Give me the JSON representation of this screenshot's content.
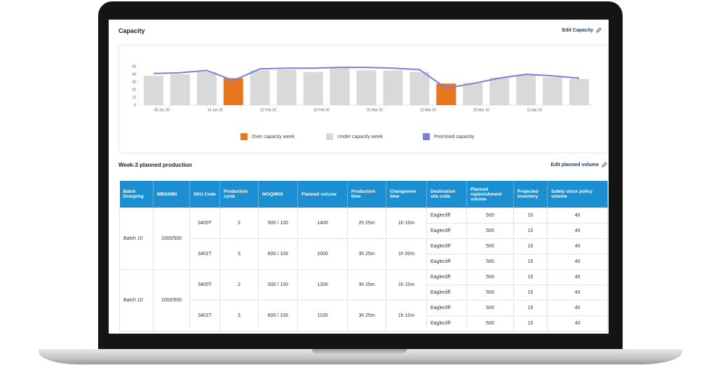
{
  "header": {
    "title": "Capacity",
    "edit": "Edit Capacity"
  },
  "chart_data": {
    "type": "bar",
    "categories": [
      "05 Jan 20",
      null,
      "19 Jan 20",
      null,
      "02 Feb 20",
      null,
      "16 Feb 20",
      null,
      "01 Mar 20",
      null,
      "15 Mar 20",
      null,
      "29 Mar 20",
      null,
      "12 Apr 20",
      null,
      null
    ],
    "series": [
      {
        "name": "Over capacity week",
        "color": "#e8761e",
        "values": [
          null,
          null,
          null,
          35,
          null,
          null,
          null,
          null,
          null,
          null,
          null,
          28,
          null,
          null,
          null,
          null,
          null
        ]
      },
      {
        "name": "Under capacity week",
        "color": "#d9d9d9",
        "values": [
          38,
          40,
          43,
          null,
          45,
          46,
          43,
          48,
          45,
          45,
          43,
          null,
          29,
          36,
          39,
          36,
          34
        ]
      },
      {
        "name": "Promised capacity",
        "type": "line",
        "color": "#7b7fdc",
        "values": [
          41,
          42,
          45,
          32,
          47,
          48,
          48,
          49,
          49,
          48,
          46,
          22,
          28,
          35,
          40,
          38,
          35
        ]
      }
    ],
    "ylim": [
      0,
      50
    ],
    "yticks": [
      0,
      10,
      20,
      30,
      40,
      50
    ],
    "grid": false
  },
  "production": {
    "title": "Week-3 planned production",
    "edit": "Edit planned volume"
  },
  "table": {
    "headers": [
      "Batch Grouping",
      "MBS/MBI",
      "SKU Code",
      "Production cycle",
      "MOQ/MOI",
      "Planned volume",
      "Production time",
      "Changeover time",
      "Destination site code",
      "Planned replenishment volume",
      "Projected inventory",
      "Safety stock policy volume"
    ],
    "groups": [
      {
        "batch": "Batch 10",
        "mbs": "1000/500",
        "skus": [
          {
            "sku": "3400T",
            "cycle": "2",
            "moq": "500 / 100",
            "planned": "1400",
            "time": "2h 25m",
            "changeover": "1h 10m",
            "destinations": [
              {
                "site": "Eaglecliff",
                "volume": "500",
                "inventory": "10",
                "safety": "40"
              },
              {
                "site": "Eaglecliff",
                "volume": "500",
                "inventory": "10",
                "safety": "40"
              }
            ]
          },
          {
            "sku": "3401T",
            "cycle": "3",
            "moq": "600 / 100",
            "planned": "1000",
            "time": "3h 25m",
            "changeover": "1h 00m",
            "destinations": [
              {
                "site": "Eaglecliff",
                "volume": "500",
                "inventory": "10",
                "safety": "40"
              },
              {
                "site": "Eaglecliff",
                "volume": "500",
                "inventory": "10",
                "safety": "40"
              }
            ]
          }
        ]
      },
      {
        "batch": "Batch 10",
        "mbs": "1000/500",
        "skus": [
          {
            "sku": "3400T",
            "cycle": "2",
            "moq": "500 / 100",
            "planned": "1200",
            "time": "3h 25m",
            "changeover": "1h 10m",
            "destinations": [
              {
                "site": "Eaglecliff",
                "volume": "500",
                "inventory": "10",
                "safety": "40"
              },
              {
                "site": "Eaglecliff",
                "volume": "500",
                "inventory": "10",
                "safety": "40"
              }
            ]
          },
          {
            "sku": "3401T",
            "cycle": "3",
            "moq": "600 / 100",
            "planned": "1100",
            "time": "3h 25m",
            "changeover": "1h 10m",
            "destinations": [
              {
                "site": "Eaglecliff",
                "volume": "500",
                "inventory": "10",
                "safety": "40"
              },
              {
                "site": "Eaglecliff",
                "volume": "500",
                "inventory": "10",
                "safety": "40"
              }
            ]
          }
        ]
      }
    ]
  }
}
